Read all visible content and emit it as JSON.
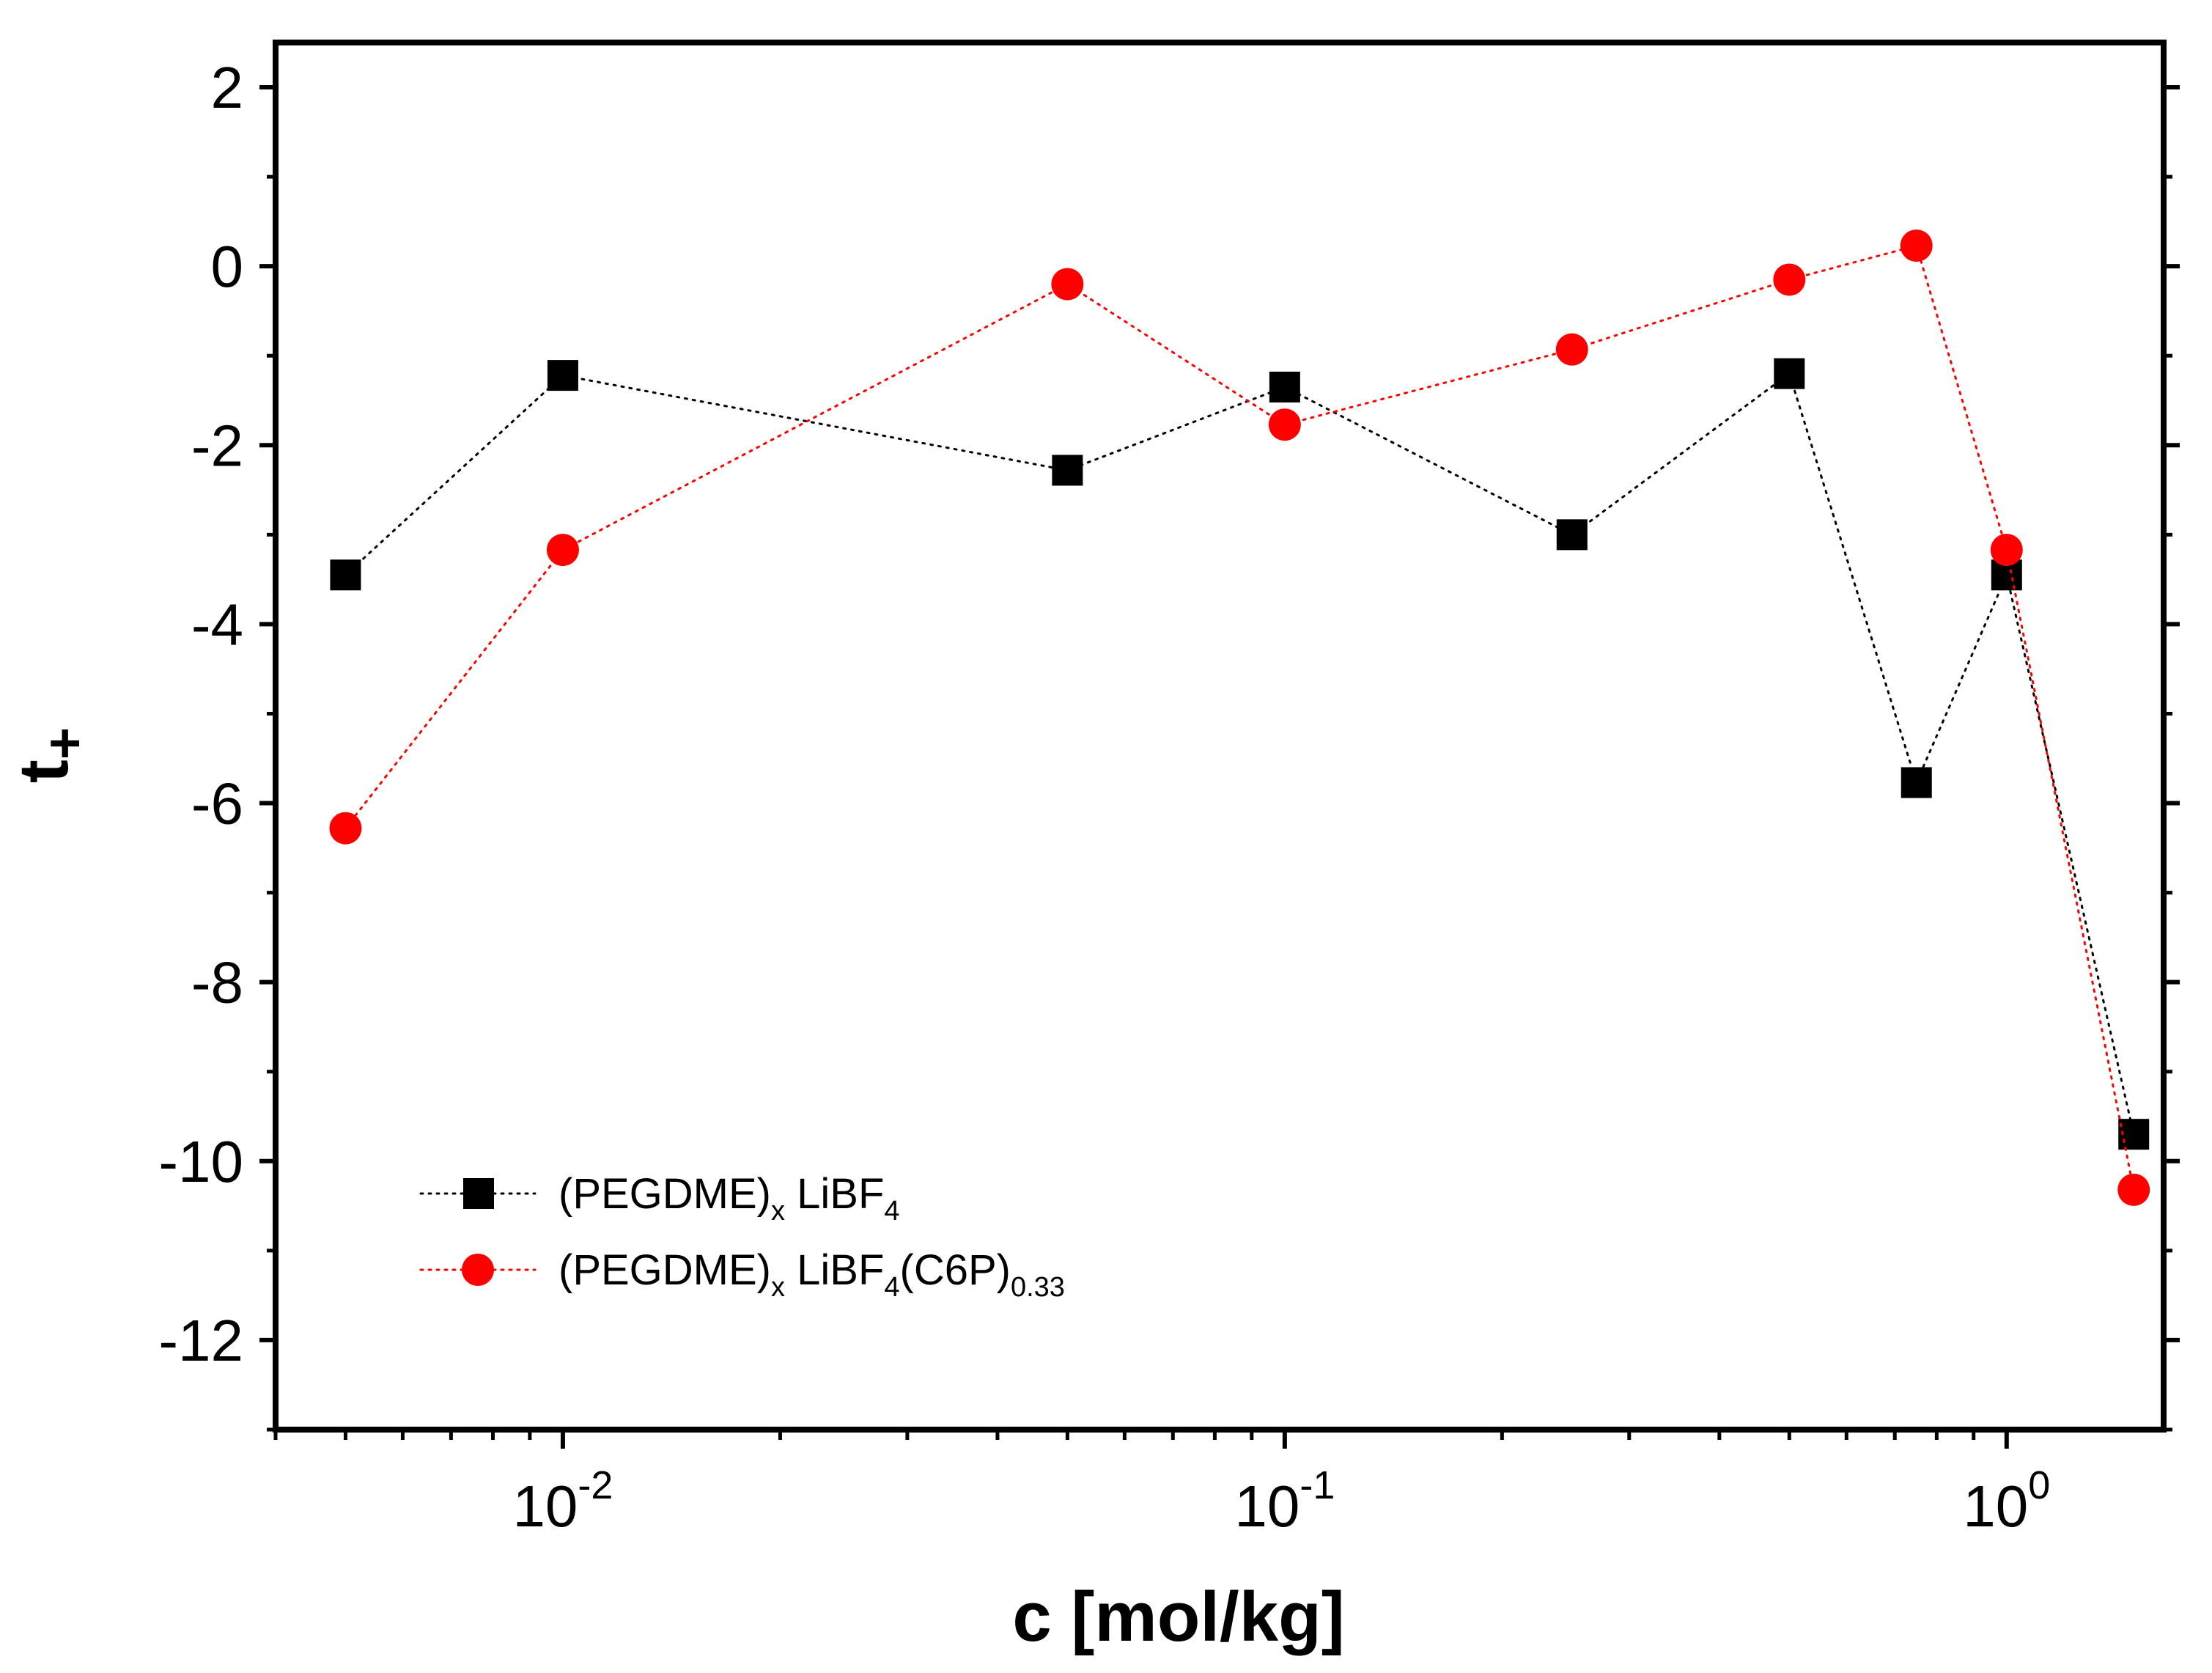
{
  "chart_data": {
    "type": "scatter",
    "title": "",
    "xlabel": "c [mol/kg]",
    "ylabel": "t+",
    "ylabel_main": "t",
    "ylabel_sub": "+",
    "xscale": "log",
    "xlim": [
      0.004,
      1.65
    ],
    "ylim": [
      -13,
      2.5
    ],
    "yticks": [
      2,
      0,
      -2,
      -4,
      -6,
      -8,
      -10,
      -12
    ],
    "ytick_labels": [
      "2",
      "0",
      "-2",
      "-4",
      "-6",
      "-8",
      "-10",
      "-12"
    ],
    "xticks": [
      {
        "value": 0.01,
        "base": "10",
        "exp": "-2"
      },
      {
        "value": 0.1,
        "base": "10",
        "exp": "-1"
      },
      {
        "value": 1,
        "base": "10",
        "exp": "0"
      }
    ],
    "grid": false,
    "legend_position": "bottom-left",
    "series": [
      {
        "name": "(PEGDME)x LiBF4",
        "legend_parts": [
          {
            "t": "(PEGDME)",
            "sub": false
          },
          {
            "t": "x",
            "sub": true
          },
          {
            "t": " LiBF",
            "sub": false
          },
          {
            "t": "4",
            "sub": true
          }
        ],
        "color": "#000000",
        "marker": "square",
        "line_style": "dotted",
        "x": [
          0.005,
          0.01,
          0.05,
          0.1,
          0.25,
          0.5,
          0.75,
          1.0,
          1.5
        ],
        "y": [
          -3.45,
          -1.22,
          -2.28,
          -1.35,
          -3.0,
          -1.2,
          -5.77,
          -3.45,
          -9.7
        ]
      },
      {
        "name": "(PEGDME)x LiBF4(C6P)0.33",
        "legend_parts": [
          {
            "t": "(PEGDME)",
            "sub": false
          },
          {
            "t": "x",
            "sub": true
          },
          {
            "t": " LiBF",
            "sub": false
          },
          {
            "t": "4",
            "sub": true
          },
          {
            "t": "(C6P)",
            "sub": false
          },
          {
            "t": "0.33",
            "sub": true
          }
        ],
        "color": "#ff0000",
        "marker": "circle",
        "line_style": "dotted",
        "x": [
          0.005,
          0.01,
          0.05,
          0.1,
          0.25,
          0.5,
          0.75,
          1.0,
          1.5
        ],
        "y": [
          -6.28,
          -3.17,
          -0.2,
          -1.77,
          -0.93,
          -0.15,
          0.23,
          -3.17,
          -10.32
        ]
      }
    ]
  }
}
